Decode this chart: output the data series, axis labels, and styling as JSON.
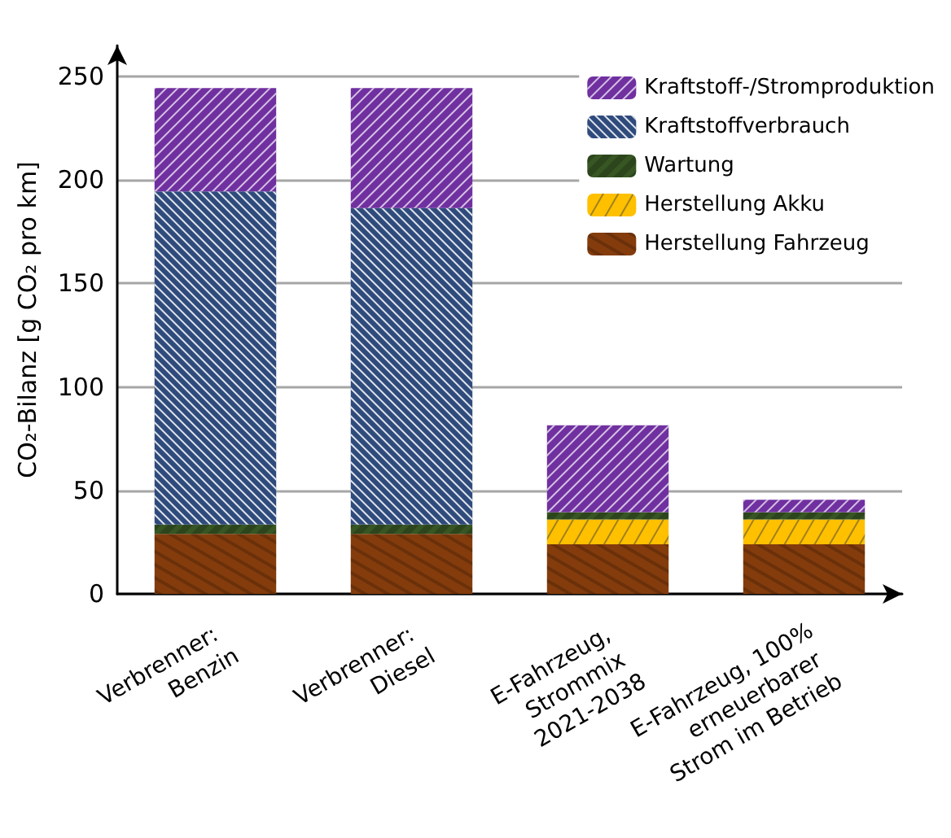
{
  "chart_data": {
    "type": "bar",
    "stacked": true,
    "ylabel": "CO₂-Bilanz [g CO₂ pro km]",
    "categories": [
      "Verbrenner: Benzin",
      "Verbrenner: Diesel",
      "E-Fahrzeug, Strommix 2021-2038",
      "E-Fahrzeug, 100% erneuerbarer Strom im Betrieb"
    ],
    "series": [
      {
        "name": "Herstellung Fahrzeug",
        "color": "#843c0c",
        "values": [
          29,
          29,
          24,
          24
        ]
      },
      {
        "name": "Herstellung Akku",
        "color": "#ffc000",
        "values": [
          null,
          null,
          12,
          12
        ]
      },
      {
        "name": "Wartung",
        "color": "#375623",
        "values": [
          4.5,
          4.5,
          3.5,
          3.5
        ]
      },
      {
        "name": "Kraftstoffverbrauch",
        "color": "#2f4b7c",
        "values": [
          161,
          153,
          null,
          null
        ]
      },
      {
        "name": "Kraftstoff-/Stromproduktion",
        "color": "#7030a0",
        "values": [
          50,
          58,
          42,
          6
        ]
      }
    ],
    "ylim": [
      0,
      265
    ],
    "yticks": [
      0,
      50,
      100,
      150,
      200,
      250
    ],
    "grid": "y",
    "legend": "top right"
  }
}
